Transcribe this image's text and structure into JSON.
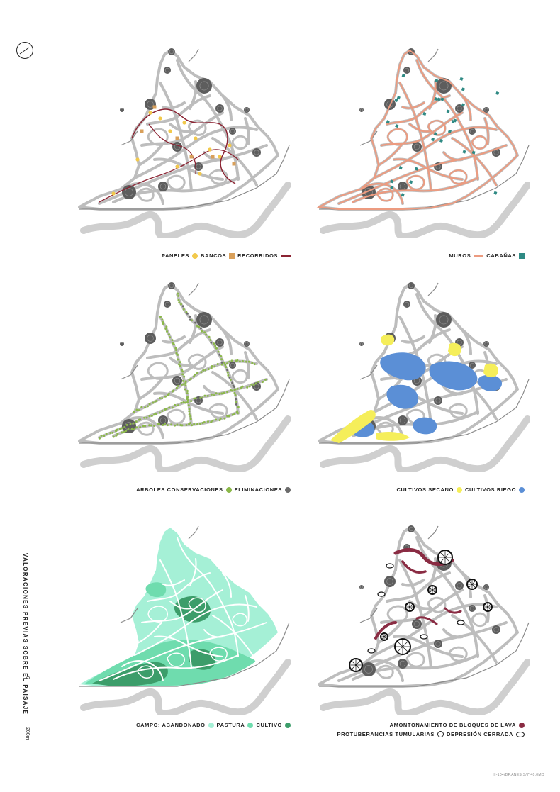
{
  "sheet_title": "VALORACIONES PREVIAS SOBRE EL PAISAJE",
  "scale": {
    "zero": "0",
    "max": "200m"
  },
  "footer": "II-104/DP.ANES.S/7*40.0MO",
  "colors": {
    "base": "#bdbdbd",
    "road": "#8a8a8a",
    "crater": "#5d5d5d",
    "water": "#cfcfcf",
    "panel": "#f2c94c",
    "bench": "#d9a05b",
    "route": "#8b2332",
    "wall": "#ec9b80",
    "cabin": "#2f8a84",
    "tree_keep": "#8bb84a",
    "tree_remove": "#6b6b6b",
    "dry": "#f5ee5a",
    "irrigated": "#5b8fd6",
    "abandoned": "#a5f0d6",
    "pasture": "#6fdcae",
    "cultivated": "#3c9d6a",
    "lava": "#8a2c43"
  },
  "panels": [
    {
      "id": "equipment",
      "legend": [
        {
          "label": "PANELES",
          "swatch": "round",
          "color": "#f2c94c"
        },
        {
          "label": "BANCOS",
          "swatch": "square",
          "color": "#d9a05b"
        },
        {
          "label": "RECORRIDOS",
          "swatch": "line",
          "color": "#8b2332"
        }
      ]
    },
    {
      "id": "walls",
      "legend": [
        {
          "label": "MUROS",
          "swatch": "line",
          "color": "#ec9b80"
        },
        {
          "label": "CABAÑAS",
          "swatch": "square",
          "color": "#2f8a84"
        }
      ]
    },
    {
      "id": "trees",
      "legend": [
        {
          "label": "ARBOLES CONSERVACIONES",
          "swatch": "round",
          "color": "#8bb84a"
        },
        {
          "label": "ELIMINACIONES",
          "swatch": "round",
          "color": "#6b6b6b"
        }
      ]
    },
    {
      "id": "crops",
      "legend": [
        {
          "label": "CULTIVOS SECANO",
          "swatch": "round",
          "color": "#f5ee5a"
        },
        {
          "label": "CULTIVOS RIEGO",
          "swatch": "round",
          "color": "#5b8fd6"
        }
      ]
    },
    {
      "id": "fields",
      "legend": [
        {
          "label": "CAMPO: ABANDONADO",
          "swatch": "round",
          "color": "#a5f0d6"
        },
        {
          "label": "PASTURA",
          "swatch": "round",
          "color": "#6fdcae"
        },
        {
          "label": "CULTIVO",
          "swatch": "round",
          "color": "#3c9d6a"
        }
      ]
    },
    {
      "id": "geology",
      "legend": [
        {
          "label": "AMONTONAMIENTO DE BLOQUES DE LAVA",
          "swatch": "round",
          "color": "#8a2c43"
        }
      ],
      "legend2": [
        {
          "label": "PROTUBERANCIAS TUMULARIAS",
          "swatch": "ring",
          "color": "#222222"
        },
        {
          "label": "DEPRESIÓN CERRADA",
          "swatch": "oval",
          "color": "#ffffff"
        }
      ]
    }
  ]
}
